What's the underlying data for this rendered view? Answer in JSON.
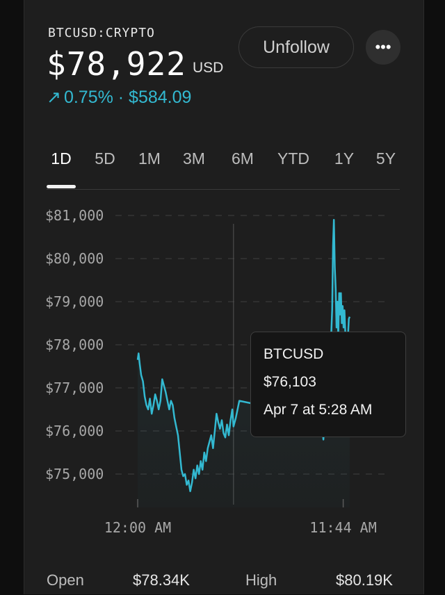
{
  "quote": {
    "symbol": "BTCUSD:CRYPTO",
    "price": "$78,922",
    "currency": "USD",
    "change_arrow": "↗",
    "change": "0.75% · $584.09",
    "accent_color": "#33b9d1"
  },
  "actions": {
    "unfollow_label": "Unfollow",
    "more_label": "•••"
  },
  "tabs": [
    {
      "label": "1D",
      "active": true
    },
    {
      "label": "5D",
      "active": false
    },
    {
      "label": "1M",
      "active": false
    },
    {
      "label": "3M",
      "active": false
    },
    {
      "label": "6M",
      "active": false
    },
    {
      "label": "YTD",
      "active": false
    },
    {
      "label": "1Y",
      "active": false
    },
    {
      "label": "5Y",
      "active": false
    }
  ],
  "chart": {
    "y_ticks": [
      "$81,000",
      "$80,000",
      "$79,000",
      "$78,000",
      "$77,000",
      "$76,000",
      "$75,000"
    ],
    "x_ticks": [
      "12:00 AM",
      "11:44 AM"
    ]
  },
  "chart_data": {
    "type": "line",
    "ylim": [
      74500,
      81000
    ],
    "y_ticks": [
      81000,
      80000,
      79000,
      78000,
      77000,
      76000,
      75000
    ],
    "x_range_hours": [
      0,
      13
    ],
    "x_ticks": [
      {
        "label": "12:00 AM",
        "hour": 0
      },
      {
        "label": "11:44 AM",
        "hour": 11.73
      }
    ],
    "crosshair_hour": 5.47,
    "grid": true,
    "series": [
      {
        "color": "#33b9d1",
        "points": [
          [
            0.0,
            77650
          ],
          [
            0.05,
            77800
          ],
          [
            0.12,
            77550
          ],
          [
            0.2,
            77300
          ],
          [
            0.3,
            77150
          ],
          [
            0.4,
            76800
          ],
          [
            0.5,
            76600
          ],
          [
            0.6,
            76500
          ],
          [
            0.7,
            76750
          ],
          [
            0.8,
            76400
          ],
          [
            0.9,
            76600
          ],
          [
            1.0,
            76850
          ],
          [
            1.1,
            76700
          ],
          [
            1.2,
            76500
          ],
          [
            1.3,
            76700
          ],
          [
            1.4,
            77200
          ],
          [
            1.5,
            77050
          ],
          [
            1.6,
            76900
          ],
          [
            1.7,
            76700
          ],
          [
            1.8,
            76500
          ],
          [
            1.9,
            76700
          ],
          [
            2.0,
            76600
          ],
          [
            2.1,
            76300
          ],
          [
            2.2,
            76100
          ],
          [
            2.3,
            75900
          ],
          [
            2.4,
            75500
          ],
          [
            2.5,
            75100
          ],
          [
            2.6,
            74950
          ],
          [
            2.7,
            75000
          ],
          [
            2.8,
            74750
          ],
          [
            2.9,
            74850
          ],
          [
            3.0,
            74600
          ],
          [
            3.1,
            74800
          ],
          [
            3.2,
            75100
          ],
          [
            3.3,
            74900
          ],
          [
            3.4,
            75200
          ],
          [
            3.5,
            75000
          ],
          [
            3.6,
            75300
          ],
          [
            3.7,
            75100
          ],
          [
            3.8,
            75500
          ],
          [
            3.9,
            75300
          ],
          [
            4.0,
            75600
          ],
          [
            4.1,
            75750
          ],
          [
            4.2,
            75900
          ],
          [
            4.3,
            75600
          ],
          [
            4.4,
            76000
          ],
          [
            4.5,
            76400
          ],
          [
            4.6,
            76200
          ],
          [
            4.7,
            76050
          ],
          [
            4.8,
            76250
          ],
          [
            4.9,
            75950
          ],
          [
            5.0,
            75850
          ],
          [
            5.1,
            76150
          ],
          [
            5.2,
            75900
          ],
          [
            5.3,
            76250
          ],
          [
            5.4,
            76500
          ],
          [
            5.47,
            76103
          ],
          [
            5.6,
            76300
          ],
          [
            5.8,
            76700
          ],
          [
            10.5,
            76300
          ],
          [
            10.6,
            75800
          ],
          [
            10.7,
            76400
          ],
          [
            10.8,
            77100
          ],
          [
            10.9,
            77500
          ],
          [
            11.0,
            77900
          ],
          [
            11.05,
            78300
          ],
          [
            11.1,
            78800
          ],
          [
            11.15,
            80300
          ],
          [
            11.2,
            80900
          ],
          [
            11.25,
            79800
          ],
          [
            11.3,
            79300
          ],
          [
            11.35,
            78400
          ],
          [
            11.4,
            79000
          ],
          [
            11.45,
            78200
          ],
          [
            11.5,
            79200
          ],
          [
            11.55,
            78700
          ],
          [
            11.6,
            79200
          ],
          [
            11.65,
            78500
          ],
          [
            11.7,
            78900
          ],
          [
            11.75,
            78400
          ],
          [
            11.8,
            78800
          ],
          [
            11.85,
            78300
          ],
          [
            11.9,
            78100
          ],
          [
            11.95,
            77900
          ],
          [
            12.0,
            78200
          ],
          [
            12.05,
            78600
          ],
          [
            12.1,
            78650
          ]
        ]
      }
    ]
  },
  "tooltip": {
    "symbol": "BTCUSD",
    "price": "$76,103",
    "time": "Apr 7 at 5:28 AM"
  },
  "stats": {
    "open_label": "Open",
    "open_value": "$78.34K",
    "high_label": "High",
    "high_value": "$80.19K"
  }
}
